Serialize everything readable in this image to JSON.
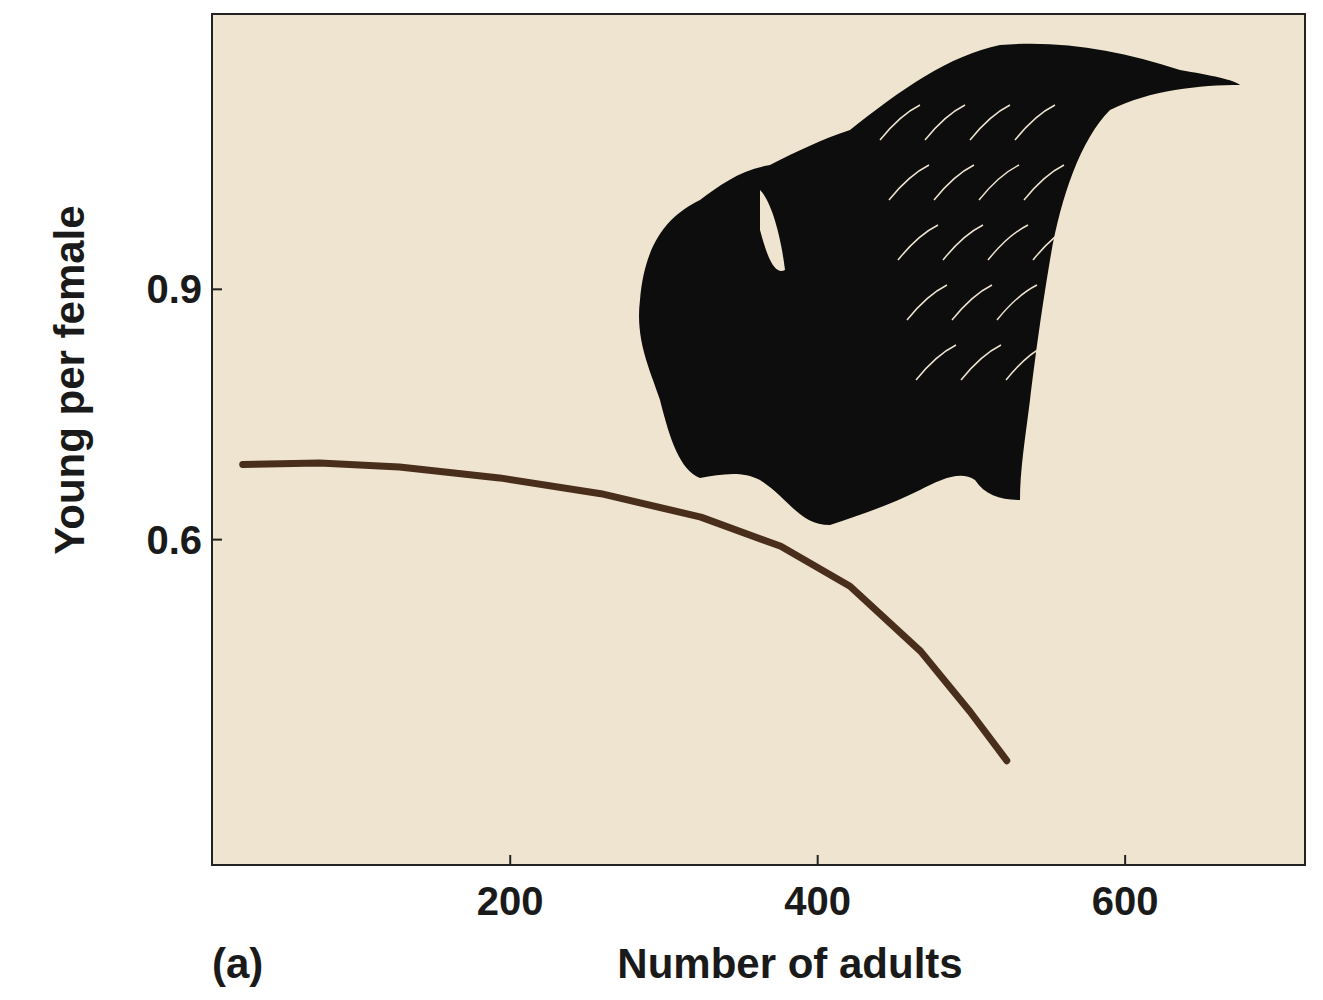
{
  "chart_data": {
    "type": "line",
    "x_label": "Number of adults",
    "y_label": "Young per female",
    "annotations": [
      "(a)"
    ],
    "x": [
      26,
      76,
      128,
      193,
      259,
      324,
      376,
      421,
      467,
      499,
      523
    ],
    "values": [
      0.69,
      0.692,
      0.687,
      0.674,
      0.655,
      0.627,
      0.592,
      0.544,
      0.466,
      0.394,
      0.335
    ],
    "color": "#4a2e1c",
    "xlim": [
      6,
      717
    ],
    "xticks": [
      200,
      400,
      600
    ],
    "ylim": [
      0.21,
      1.23
    ],
    "yticks": [
      0.6,
      0.9
    ],
    "grid": false
  }
}
